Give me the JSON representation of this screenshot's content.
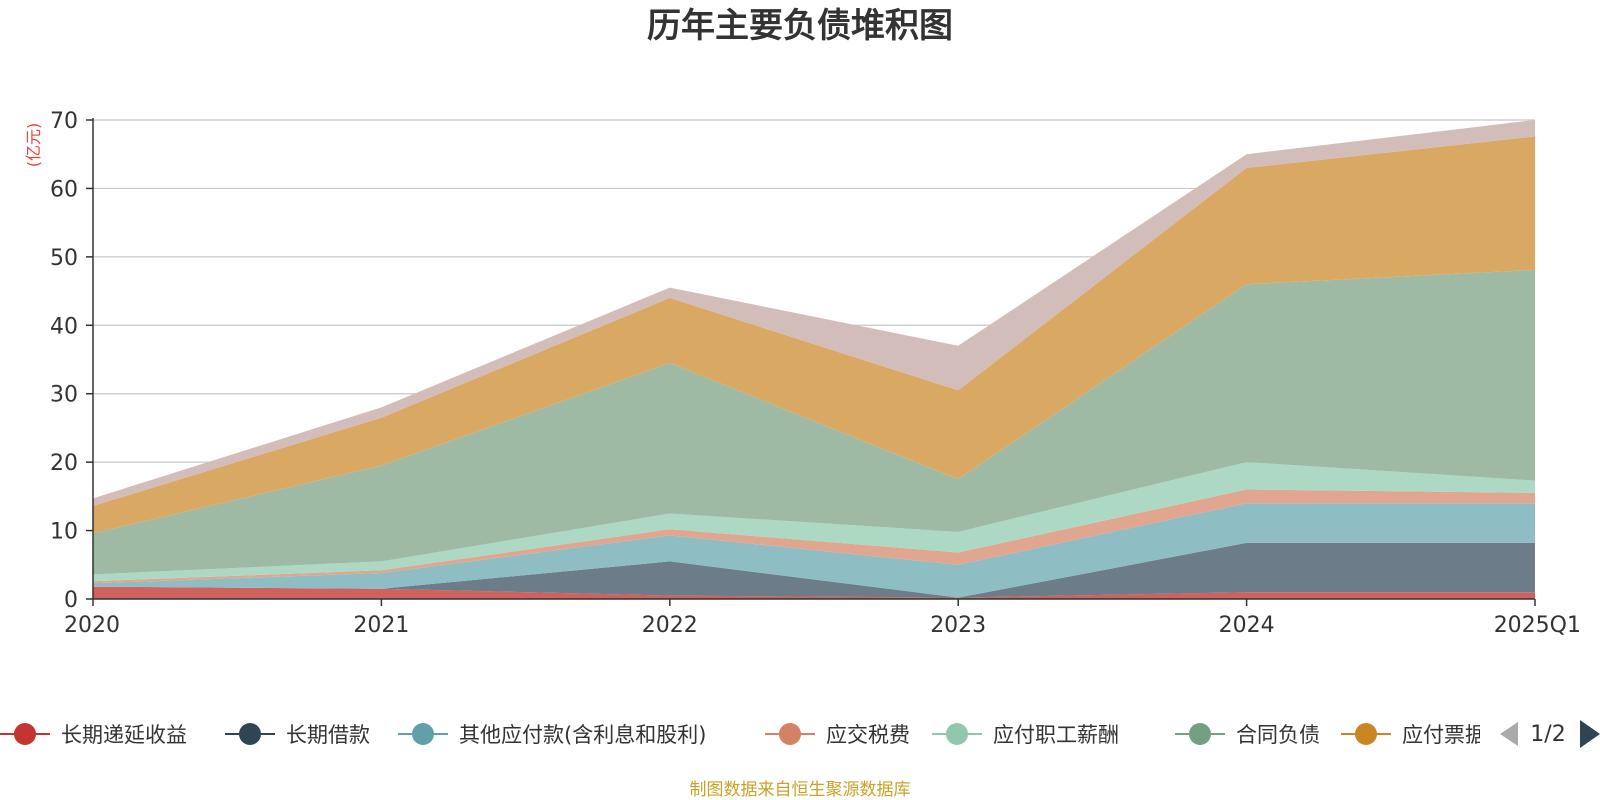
{
  "chart_data": {
    "type": "area",
    "stacked": true,
    "title": "历年主要负债堆积图",
    "unit_label": "(亿元)",
    "categories": [
      "2020",
      "2021",
      "2022",
      "2023",
      "2024",
      "2025Q1"
    ],
    "ylim": [
      0,
      70
    ],
    "yticks": [
      "0",
      "10",
      "20",
      "30",
      "40",
      "50",
      "60",
      "70"
    ],
    "grid": true,
    "legend_position": "bottom",
    "series": [
      {
        "name": "长期递延收益",
        "color": "#d0615f",
        "values": [
          1.8,
          1.5,
          0.5,
          0.2,
          1.0,
          1.0
        ]
      },
      {
        "name": "长期借款",
        "color": "#6c7c88",
        "values": [
          0.0,
          0.0,
          5.0,
          0.0,
          7.2,
          7.2
        ]
      },
      {
        "name": "其他应付款(含利息和股利)",
        "color": "#8fbdc4",
        "values": [
          0.5,
          2.3,
          3.8,
          4.8,
          5.8,
          5.8
        ]
      },
      {
        "name": "应交税费",
        "color": "#e0a690",
        "values": [
          0.3,
          0.4,
          0.9,
          1.8,
          2.0,
          1.5
        ]
      },
      {
        "name": "应付职工薪酬",
        "color": "#acd8c4",
        "values": [
          1.0,
          1.3,
          2.3,
          3.0,
          4.0,
          1.8
        ]
      },
      {
        "name": "合同负债",
        "color": "#9ebaa5",
        "values": [
          6.0,
          14.0,
          22.0,
          7.7,
          26.0,
          30.8
        ]
      },
      {
        "name": "应付票据",
        "color": "#d9a963",
        "values": [
          4.0,
          7.0,
          9.5,
          13.0,
          17.0,
          19.5
        ]
      },
      {
        "name": "",
        "color": "#d3bdba",
        "values": [
          1.1,
          1.5,
          1.5,
          6.5,
          2.0,
          2.4
        ]
      }
    ]
  },
  "legend": {
    "items": [
      {
        "label": "长期递延收益",
        "color": "#c23531"
      },
      {
        "label": "长期借款",
        "color": "#2f4554"
      },
      {
        "label": "其他应付款(含利息和股利)",
        "color": "#61a0a8"
      },
      {
        "label": "应交税费",
        "color": "#d48265"
      },
      {
        "label": "应付职工薪酬",
        "color": "#91c7ae"
      },
      {
        "label": "合同负债",
        "color": "#749f83"
      },
      {
        "label": "应付票据",
        "color": "#ca8622"
      }
    ],
    "page_indicator": "1/2"
  },
  "source": "制图数据来自恒生聚源数据库"
}
